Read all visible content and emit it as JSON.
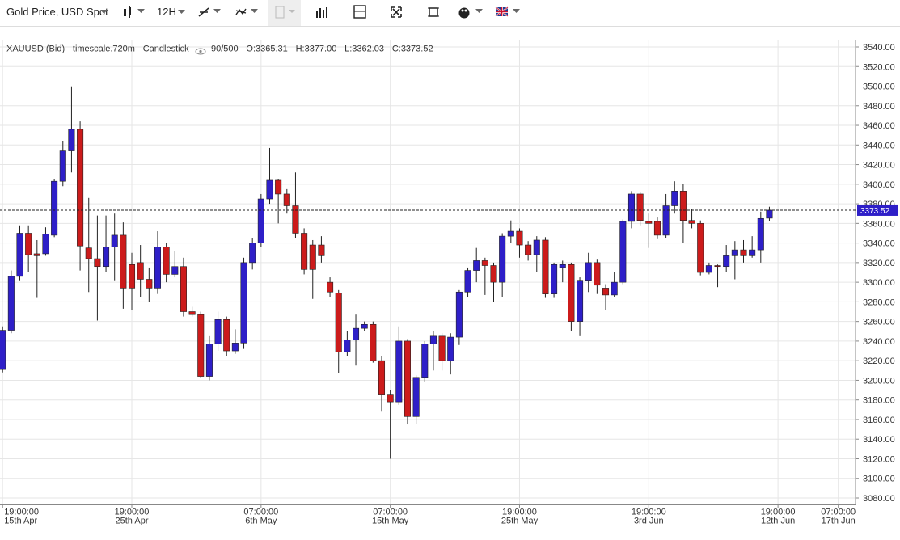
{
  "toolbar": {
    "instrument": "Gold Price, USD Spot",
    "interval": "12H"
  },
  "chart_data": {
    "type": "candlestick",
    "info_title": "XAUUSD (Bid) - timescale.720m - Candlestick",
    "info_values": "90/500 - O:3365.31 - H:3377.00 - L:3362.03 - C:3373.52",
    "up_color": "#2e1fc8",
    "down_color": "#cc1b1b",
    "grid": true,
    "xlim": [
      -0.3,
      99
    ],
    "ylim": [
      3073,
      3547
    ],
    "yticks": [
      {
        "value": 3080,
        "label": "3080.00"
      },
      {
        "value": 3100,
        "label": "3100.00"
      },
      {
        "value": 3120,
        "label": "3120.00"
      },
      {
        "value": 3140,
        "label": "3140.00"
      },
      {
        "value": 3160,
        "label": "3160.00"
      },
      {
        "value": 3180,
        "label": "3180.00"
      },
      {
        "value": 3200,
        "label": "3200.00"
      },
      {
        "value": 3220,
        "label": "3220.00"
      },
      {
        "value": 3240,
        "label": "3240.00"
      },
      {
        "value": 3260,
        "label": "3260.00"
      },
      {
        "value": 3280,
        "label": "3280.00"
      },
      {
        "value": 3300,
        "label": "3300.00"
      },
      {
        "value": 3320,
        "label": "3320.00"
      },
      {
        "value": 3340,
        "label": "3340.00"
      },
      {
        "value": 3360,
        "label": "3360.00"
      },
      {
        "value": 3380,
        "label": "3380.00"
      },
      {
        "value": 3400,
        "label": "3400.00"
      },
      {
        "value": 3420,
        "label": "3420.00"
      },
      {
        "value": 3440,
        "label": "3440.00"
      },
      {
        "value": 3460,
        "label": "3460.00"
      },
      {
        "value": 3480,
        "label": "3480.00"
      },
      {
        "value": 3500,
        "label": "3500.00"
      },
      {
        "value": 3520,
        "label": "3520.00"
      },
      {
        "value": 3540,
        "label": "3540.00"
      }
    ],
    "xticks": [
      {
        "value": 0,
        "label": "19:00:00",
        "date": "15th Apr"
      },
      {
        "value": 15,
        "label": "19:00:00",
        "date": "25th Apr"
      },
      {
        "value": 30,
        "label": "07:00:00",
        "date": "6th May"
      },
      {
        "value": 45,
        "label": "07:00:00",
        "date": "15th May"
      },
      {
        "value": 60,
        "label": "19:00:00",
        "date": "25th May"
      },
      {
        "value": 75,
        "label": "19:00:00",
        "date": "3rd Jun"
      },
      {
        "value": 90,
        "label": "19:00:00",
        "date": "12th Jun"
      },
      {
        "value": 97,
        "label": "07:00:00",
        "date": "17th Jun"
      }
    ],
    "open": [
      3211,
      3251,
      3306,
      3350,
      3329,
      3329,
      3348,
      3403,
      3434,
      3456,
      3335,
      3324,
      3316,
      3336,
      3348,
      3318,
      3320,
      3303,
      3294,
      3336,
      3308,
      3316,
      3270,
      3267,
      3204,
      3237,
      3262,
      3230,
      3238,
      3320,
      3340,
      3385,
      3404,
      3390,
      3378,
      3350,
      3338,
      3338,
      3300,
      3289,
      3229,
      3241,
      3253,
      3257,
      3220,
      3185,
      3178,
      3240,
      3163,
      3203,
      3237,
      3245,
      3220,
      3244,
      3290,
      3312,
      3322,
      3317,
      3300,
      3347,
      3352,
      3338,
      3328,
      3343,
      3288,
      3315,
      3318,
      3260,
      3302,
      3320,
      3294,
      3287,
      3300,
      3362,
      3390,
      3362,
      3362,
      3348,
      3378,
      3393,
      3363,
      3360,
      3310,
      3317,
      3316,
      3327,
      3333,
      3327,
      3333,
      3365.31
    ],
    "high": [
      3255,
      3312,
      3358,
      3358,
      3343,
      3356,
      3405,
      3444,
      3499,
      3464,
      3386,
      3368,
      3368,
      3370,
      3361,
      3330,
      3338,
      3315,
      3352,
      3340,
      3332,
      3325,
      3275,
      3270,
      3245,
      3270,
      3265,
      3252,
      3325,
      3345,
      3390,
      3437,
      3405,
      3395,
      3412,
      3355,
      3343,
      3347,
      3305,
      3292,
      3250,
      3267,
      3260,
      3260,
      3225,
      3190,
      3255,
      3242,
      3205,
      3240,
      3250,
      3248,
      3248,
      3292,
      3315,
      3335,
      3325,
      3320,
      3350,
      3363,
      3355,
      3342,
      3347,
      3346,
      3320,
      3322,
      3320,
      3305,
      3330,
      3323,
      3298,
      3310,
      3364,
      3393,
      3392,
      3370,
      3366,
      3390,
      3403,
      3400,
      3375,
      3363,
      3320,
      3318,
      3338,
      3342,
      3343,
      3347,
      3372,
      3377.0
    ],
    "low": [
      3208,
      3248,
      3302,
      3310,
      3284,
      3327,
      3346,
      3398,
      3412,
      3312,
      3290,
      3261,
      3310,
      3302,
      3273,
      3272,
      3285,
      3280,
      3288,
      3300,
      3305,
      3265,
      3265,
      3202,
      3200,
      3230,
      3225,
      3227,
      3232,
      3313,
      3336,
      3380,
      3360,
      3370,
      3345,
      3308,
      3283,
      3320,
      3285,
      3207,
      3225,
      3215,
      3250,
      3218,
      3168,
      3120,
      3175,
      3155,
      3155,
      3198,
      3210,
      3210,
      3206,
      3236,
      3285,
      3300,
      3287,
      3280,
      3285,
      3340,
      3325,
      3322,
      3310,
      3284,
      3284,
      3300,
      3250,
      3245,
      3290,
      3288,
      3272,
      3285,
      3298,
      3355,
      3358,
      3335,
      3344,
      3345,
      3370,
      3340,
      3355,
      3307,
      3308,
      3295,
      3310,
      3303,
      3320,
      3325,
      3320,
      3362.03
    ],
    "close": [
      3251,
      3306,
      3350,
      3328,
      3327,
      3349,
      3403,
      3434,
      3456,
      3337,
      3324,
      3316,
      3336,
      3348,
      3294,
      3294,
      3303,
      3294,
      3336,
      3308,
      3316,
      3270,
      3267,
      3204,
      3237,
      3262,
      3230,
      3238,
      3320,
      3340,
      3385,
      3404,
      3390,
      3378,
      3350,
      3313,
      3313,
      3327,
      3290,
      3229,
      3241,
      3253,
      3257,
      3220,
      3185,
      3178,
      3240,
      3163,
      3203,
      3237,
      3245,
      3220,
      3244,
      3290,
      3312,
      3322,
      3317,
      3300,
      3347,
      3352,
      3338,
      3328,
      3343,
      3288,
      3318,
      3318,
      3260,
      3302,
      3320,
      3297,
      3287,
      3300,
      3362,
      3390,
      3363,
      3360,
      3348,
      3378,
      3393,
      3363,
      3360,
      3310,
      3317,
      3316,
      3327,
      3333,
      3327,
      3333,
      3365,
      3373.52
    ]
  }
}
